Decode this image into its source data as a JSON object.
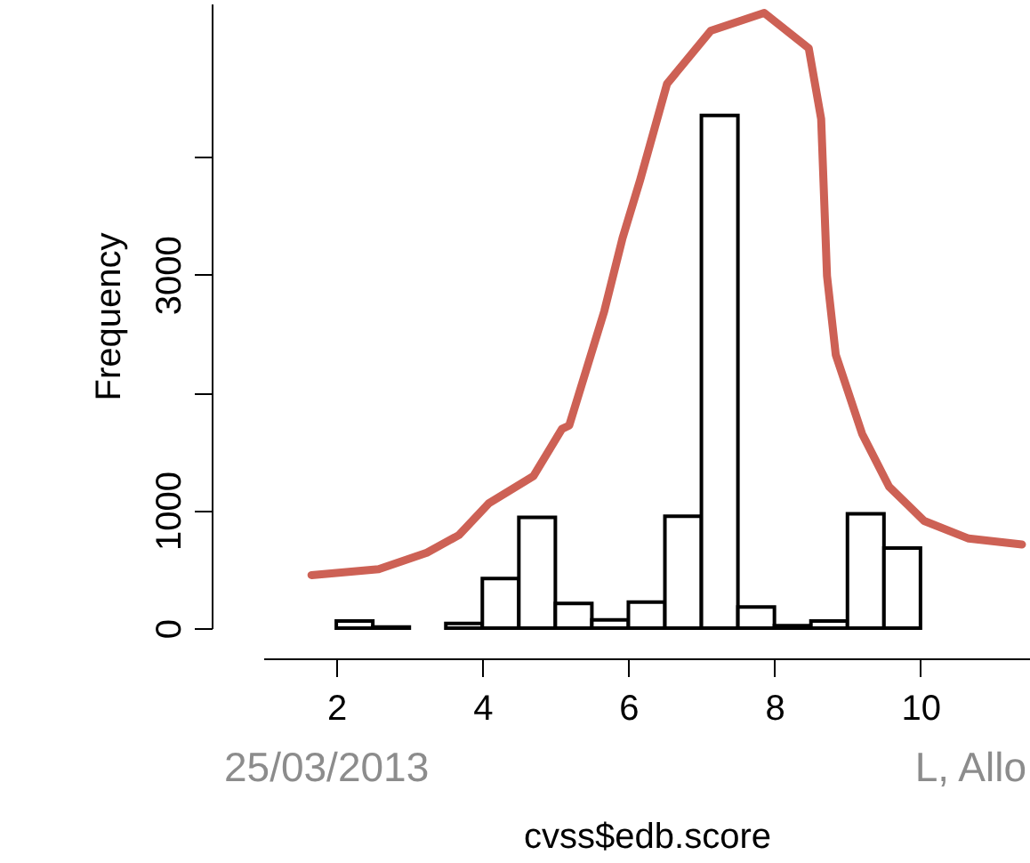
{
  "chart_data": {
    "type": "histogram",
    "xlabel": "cvss$edb.score",
    "ylabel": "Frequency",
    "bins": [
      1.0,
      1.5,
      2.0,
      2.5,
      3.0,
      3.5,
      4.0,
      4.5,
      5.0,
      5.5,
      6.0,
      6.5,
      7.0,
      7.5,
      8.0,
      8.5,
      9.0,
      9.5,
      10.0
    ],
    "values": [
      null,
      null,
      60,
      10,
      null,
      40,
      420,
      940,
      210,
      70,
      220,
      950,
      4350,
      180,
      20,
      60,
      970,
      680
    ],
    "color": "#ffffff",
    "series": [
      {
        "type": "line",
        "color": "#cd6155",
        "x": [
          1.66,
          2.58,
          3.24,
          3.68,
          4.09,
          4.7,
          5.09,
          5.19,
          5.67,
          5.92,
          6.16,
          6.53,
          7.13,
          7.86,
          8.47,
          8.64,
          8.72,
          8.84,
          9.2,
          9.57,
          10.05,
          10.66,
          11.39
        ],
        "values": [
          450,
          500,
          640,
          790,
          1060,
          1290,
          1690,
          1720,
          2690,
          3310,
          3800,
          4620,
          5070,
          5220,
          4920,
          4320,
          2990,
          2320,
          1650,
          1200,
          910,
          760,
          710
        ]
      }
    ],
    "xlim": [
      1,
      11.5
    ],
    "ylim": [
      0,
      5300
    ],
    "xticks": [
      2,
      4,
      6,
      8,
      10
    ],
    "yticks": [
      0,
      1000,
      {
        "value": 2000,
        "label": null
      },
      3000,
      {
        "value": 4000,
        "label": null
      }
    ],
    "grid": false,
    "annotations": [
      "25/03/2013",
      "L, Allo"
    ]
  }
}
